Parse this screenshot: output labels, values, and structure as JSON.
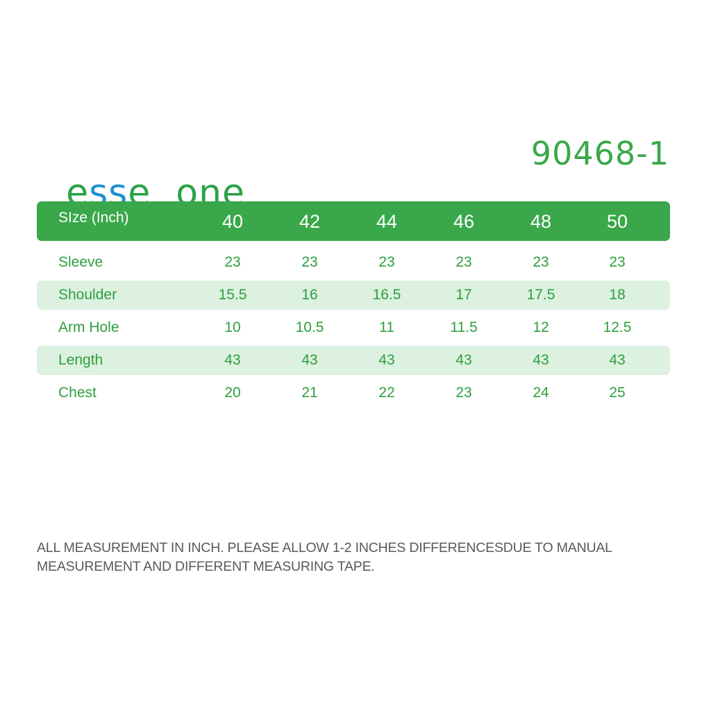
{
  "brand": {
    "part1": "esse",
    "part2": "one",
    "colors": {
      "e": "#2aa348",
      "s": "#1f8fd0"
    }
  },
  "product_code": "90468-1",
  "table": {
    "header": {
      "label": "SIze (Inch)",
      "sizes": [
        "40",
        "42",
        "44",
        "46",
        "48",
        "50"
      ]
    },
    "rows": [
      {
        "label": "Sleeve",
        "values": [
          "23",
          "23",
          "23",
          "23",
          "23",
          "23"
        ]
      },
      {
        "label": "Shoulder",
        "values": [
          "15.5",
          "16",
          "16.5",
          "17",
          "17.5",
          "18"
        ]
      },
      {
        "label": "Arm Hole",
        "values": [
          "10",
          "10.5",
          "11",
          "11.5",
          "12",
          "12.5"
        ]
      },
      {
        "label": "Length",
        "values": [
          "43",
          "43",
          "43",
          "43",
          "43",
          "43"
        ]
      },
      {
        "label": "Chest",
        "values": [
          "20",
          "21",
          "22",
          "23",
          "24",
          "25"
        ]
      }
    ]
  },
  "footnote": {
    "line1": "ALL MEASUREMENT IN INCH. PLEASE ALLOW 1-2 INCHES DIFFERENCESDUE TO MANUAL",
    "line2": "MEASUREMENT AND DIFFERENT MEASURING TAPE."
  },
  "colors": {
    "accent_green": "#3aa84a",
    "text_green": "#2e9e3e",
    "row_shade": "#dcf1df",
    "footnote_gray": "#555a5e"
  }
}
